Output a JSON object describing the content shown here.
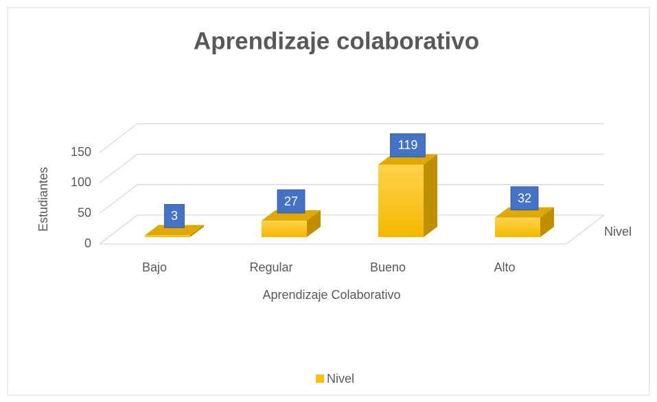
{
  "chart_data": {
    "type": "bar3d",
    "title": "Aprendizaje colaborativo",
    "x_label": "Aprendizaje Colaborativo",
    "y_label": "Estudiantes",
    "categories": [
      "Bajo",
      "Regular",
      "Bueno",
      "Alto"
    ],
    "series": [
      {
        "name": "Nivel",
        "color": "#ffc000",
        "values": [
          3,
          27,
          119,
          32
        ]
      }
    ],
    "ylim": [
      0,
      150
    ],
    "yticks": [
      0,
      50,
      100,
      150
    ],
    "grid": true,
    "label_color": "#4472c4",
    "legend": "bottom"
  }
}
